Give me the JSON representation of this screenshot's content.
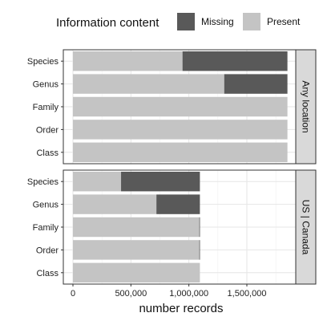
{
  "chart_data": {
    "type": "bar",
    "orientation": "horizontal",
    "stacked": true,
    "legend": {
      "title": "Information content",
      "position": "top",
      "entries": [
        {
          "name": "Missing",
          "color": "#595959"
        },
        {
          "name": "Present",
          "color": "#c4c4c4"
        }
      ]
    },
    "xlabel": "number records",
    "ylabel": "",
    "xlim": [
      0,
      1930000
    ],
    "xticks": [
      0,
      500000,
      1000000,
      1500000
    ],
    "xtick_labels": [
      "0",
      "500,000",
      "1,000,000",
      "1,500,000"
    ],
    "grid": true,
    "categories": [
      "Species",
      "Genus",
      "Family",
      "Order",
      "Class"
    ],
    "panels": [
      {
        "strip_label": "Any location",
        "series": [
          {
            "name": "Present",
            "values": [
              945000,
              1305000,
              1850000,
              1850000,
              1850000
            ]
          },
          {
            "name": "Missing",
            "values": [
              905000,
              545000,
              0,
              0,
              0
            ]
          }
        ]
      },
      {
        "strip_label": "US | Canada",
        "series": [
          {
            "name": "Present",
            "values": [
              415000,
              720000,
              1090000,
              1090000,
              1095000
            ]
          },
          {
            "name": "Missing",
            "values": [
              680000,
              375000,
              5000,
              5000,
              0
            ]
          }
        ]
      }
    ]
  }
}
